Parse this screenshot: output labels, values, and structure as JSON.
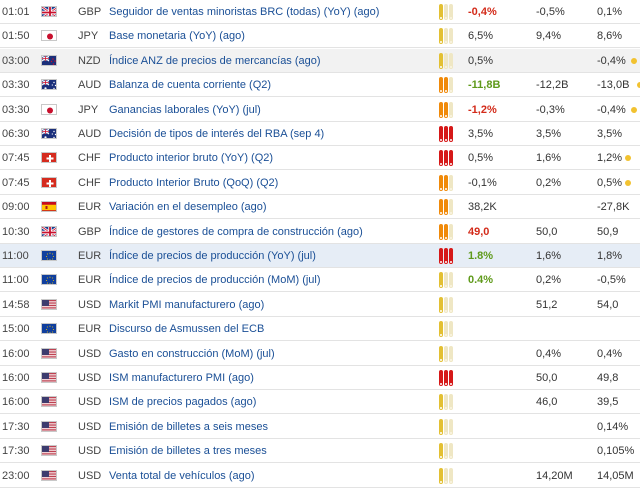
{
  "columns": [
    "time",
    "currency",
    "event",
    "importance",
    "actual",
    "forecast",
    "previous"
  ],
  "rows": [
    {
      "time": "01:01",
      "flag": "uk-flag-icon",
      "currency": "GBP",
      "event": "Seguidor de ventas minoristas BRC (todas) (YoY) (ago)",
      "importance": "low",
      "actual": "-0,4%",
      "actual_status": "bad",
      "forecast": "-0,5%",
      "previous": "0,1%",
      "revised": false
    },
    {
      "time": "01:50",
      "flag": "japan-flag-icon",
      "currency": "JPY",
      "event": "Base monetaria (YoY) (ago)",
      "importance": "low",
      "actual": "6,5%",
      "actual_status": "neutral",
      "forecast": "9,4%",
      "previous": "8,6%",
      "revised": false
    },
    {
      "time": "03:00",
      "flag": "new-zealand-flag-icon",
      "currency": "NZD",
      "event": "Índice ANZ de precios de mercancías (ago)",
      "importance": "low",
      "actual": "0,5%",
      "actual_status": "neutral",
      "forecast": "",
      "previous": "-0,4%",
      "revised": true
    },
    {
      "time": "03:30",
      "flag": "australia-flag-icon",
      "currency": "AUD",
      "event": "Balanza de cuenta corriente (Q2)",
      "importance": "medium",
      "actual": "-11,8B",
      "actual_status": "good",
      "forecast": "-12,2B",
      "previous": "-13,0B",
      "revised": true
    },
    {
      "time": "03:30",
      "flag": "japan-flag-icon",
      "currency": "JPY",
      "event": "Ganancias laborales (YoY) (jul)",
      "importance": "medium",
      "actual": "-1,2%",
      "actual_status": "bad",
      "forecast": "-0,3%",
      "previous": "-0,4%",
      "revised": true
    },
    {
      "time": "06:30",
      "flag": "australia-flag-icon",
      "currency": "AUD",
      "event": "Decisión de tipos de interés del RBA (sep 4)",
      "importance": "high",
      "actual": "3,5%",
      "actual_status": "neutral",
      "forecast": "3,5%",
      "previous": "3,5%",
      "revised": false
    },
    {
      "time": "07:45",
      "flag": "switzerland-flag-icon",
      "currency": "CHF",
      "event": "Producto interior bruto (YoY) (Q2)",
      "importance": "high",
      "actual": "0,5%",
      "actual_status": "neutral",
      "forecast": "1,6%",
      "previous": "1,2%",
      "revised": true
    },
    {
      "time": "07:45",
      "flag": "switzerland-flag-icon",
      "currency": "CHF",
      "event": "Producto Interior Bruto (QoQ) (Q2)",
      "importance": "medium",
      "actual": "-0,1%",
      "actual_status": "neutral",
      "forecast": "0,2%",
      "previous": "0,5%",
      "revised": true
    },
    {
      "time": "09:00",
      "flag": "spain-flag-icon",
      "currency": "EUR",
      "event": "Variación en el desempleo (ago)",
      "importance": "medium",
      "actual": "38,2K",
      "actual_status": "neutral",
      "forecast": "",
      "previous": "-27,8K",
      "revised": false
    },
    {
      "time": "10:30",
      "flag": "uk-flag-icon",
      "currency": "GBP",
      "event": "Índice de gestores de compra de construcción (ago)",
      "importance": "medium",
      "actual": "49,0",
      "actual_status": "bad",
      "forecast": "50,0",
      "previous": "50,9",
      "revised": false
    },
    {
      "time": "11:00",
      "flag": "eu-flag-icon",
      "currency": "EUR",
      "event": "Índice de precios de producción (YoY) (jul)",
      "importance": "high",
      "actual": "1.8%",
      "actual_status": "good",
      "forecast": "1,6%",
      "previous": "1,8%",
      "revised": false
    },
    {
      "time": "11:00",
      "flag": "eu-flag-icon",
      "currency": "EUR",
      "event": "Índice de precios de producción (MoM) (jul)",
      "importance": "low",
      "actual": "0.4%",
      "actual_status": "good",
      "forecast": "0,2%",
      "previous": "-0,5%",
      "revised": false
    },
    {
      "time": "14:58",
      "flag": "usa-flag-icon",
      "currency": "USD",
      "event": "Markit PMI manufacturero (ago)",
      "importance": "low",
      "actual": "",
      "actual_status": "neutral",
      "forecast": "51,2",
      "previous": "54,0",
      "revised": false
    },
    {
      "time": "15:00",
      "flag": "eu-flag-icon",
      "currency": "EUR",
      "event": "Discurso de Asmussen del ECB",
      "importance": "low",
      "actual": "",
      "actual_status": "neutral",
      "forecast": "",
      "previous": "",
      "revised": false
    },
    {
      "time": "16:00",
      "flag": "usa-flag-icon",
      "currency": "USD",
      "event": "Gasto en construcción (MoM) (jul)",
      "importance": "low",
      "actual": "",
      "actual_status": "neutral",
      "forecast": "0,4%",
      "previous": "0,4%",
      "revised": false
    },
    {
      "time": "16:00",
      "flag": "usa-flag-icon",
      "currency": "USD",
      "event": "ISM manufacturero PMI (ago)",
      "importance": "high",
      "actual": "",
      "actual_status": "neutral",
      "forecast": "50,0",
      "previous": "49,8",
      "revised": false
    },
    {
      "time": "16:00",
      "flag": "usa-flag-icon",
      "currency": "USD",
      "event": "ISM de precios pagados (ago)",
      "importance": "low",
      "actual": "",
      "actual_status": "neutral",
      "forecast": "46,0",
      "previous": "39,5",
      "revised": false
    },
    {
      "time": "17:30",
      "flag": "usa-flag-icon",
      "currency": "USD",
      "event": "Emisión de billetes a seis meses",
      "importance": "low",
      "actual": "",
      "actual_status": "neutral",
      "forecast": "",
      "previous": "0,14%",
      "revised": false
    },
    {
      "time": "17:30",
      "flag": "usa-flag-icon",
      "currency": "USD",
      "event": "Emisión de billetes a tres meses",
      "importance": "low",
      "actual": "",
      "actual_status": "neutral",
      "forecast": "",
      "previous": "0,105%",
      "revised": false
    },
    {
      "time": "23:00",
      "flag": "usa-flag-icon",
      "currency": "USD",
      "event": "Venta total de vehículos (ago)",
      "importance": "low",
      "actual": "",
      "actual_status": "neutral",
      "forecast": "14,20M",
      "previous": "14,05M",
      "revised": false
    }
  ],
  "colors": {
    "good": "#5f9a1a",
    "bad": "#d32b1a",
    "high": "#d61818",
    "medium": "#f08a0a",
    "low": "#e3c033",
    "link": "#1a4f96"
  }
}
